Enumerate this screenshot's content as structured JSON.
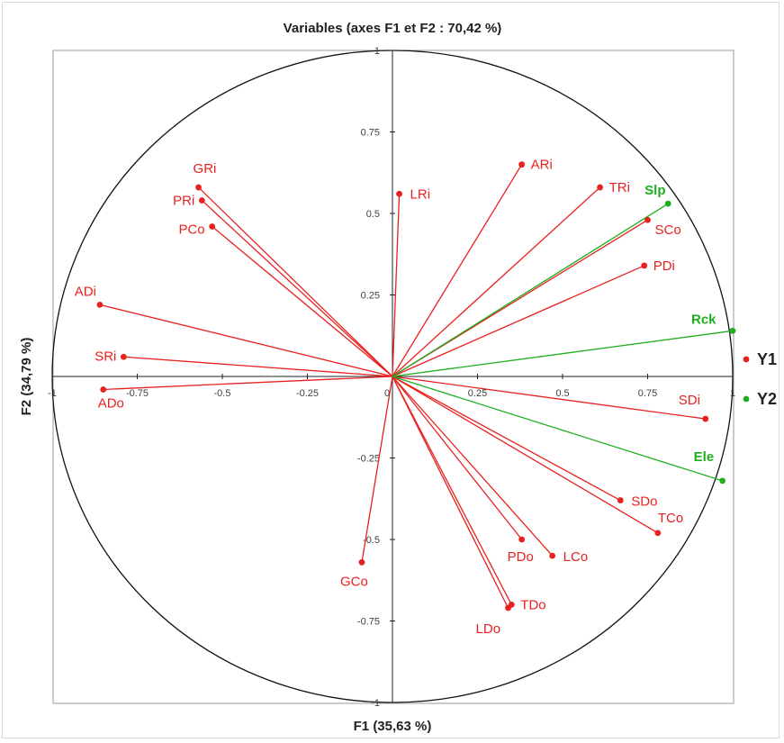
{
  "chart_data": {
    "type": "scatter",
    "subtype": "pca-correlation-circle",
    "title": "Variables (axes F1 et F2 : 70,42 %)",
    "xlabel": "F1 (35,63 %)",
    "ylabel": "F2 (34,79 %)",
    "xlim": [
      -1,
      1
    ],
    "ylim": [
      -1,
      1
    ],
    "x_ticks": [
      "-1",
      "-0.75",
      "-0.5",
      "-0.25",
      "0",
      "0.25",
      "0.5",
      "0.75",
      "1"
    ],
    "y_ticks": [
      "-1",
      "-0.75",
      "-0.5",
      "-0.25",
      "0",
      "0.25",
      "0.5",
      "0.75",
      "1"
    ],
    "legend_placement": "right",
    "series": [
      {
        "name": "Y1",
        "color": "#e8211f",
        "points": [
          {
            "label": "ARi",
            "x": 0.38,
            "y": 0.65
          },
          {
            "label": "TRi",
            "x": 0.61,
            "y": 0.58
          },
          {
            "label": "SCo",
            "x": 0.75,
            "y": 0.48
          },
          {
            "label": "PDi",
            "x": 0.74,
            "y": 0.34
          },
          {
            "label": "LRi",
            "x": 0.02,
            "y": 0.56
          },
          {
            "label": "GRi",
            "x": -0.57,
            "y": 0.58
          },
          {
            "label": "PRi",
            "x": -0.56,
            "y": 0.54
          },
          {
            "label": "PCo",
            "x": -0.53,
            "y": 0.46
          },
          {
            "label": "ADi",
            "x": -0.86,
            "y": 0.22
          },
          {
            "label": "SRi",
            "x": -0.79,
            "y": 0.06
          },
          {
            "label": "ADo",
            "x": -0.85,
            "y": -0.04
          },
          {
            "label": "SDi",
            "x": 0.92,
            "y": -0.13
          },
          {
            "label": "SDo",
            "x": 0.67,
            "y": -0.38
          },
          {
            "label": "TCo",
            "x": 0.78,
            "y": -0.48
          },
          {
            "label": "PDo",
            "x": 0.38,
            "y": -0.5
          },
          {
            "label": "LCo",
            "x": 0.47,
            "y": -0.55
          },
          {
            "label": "TDo",
            "x": 0.35,
            "y": -0.7
          },
          {
            "label": "LDo",
            "x": 0.34,
            "y": -0.71
          },
          {
            "label": "GCo",
            "x": -0.09,
            "y": -0.57
          }
        ]
      },
      {
        "name": "Y2",
        "color": "#1fae1f",
        "points": [
          {
            "label": "Slp",
            "x": 0.81,
            "y": 0.53
          },
          {
            "label": "Rck",
            "x": 1.0,
            "y": 0.14
          },
          {
            "label": "Ele",
            "x": 0.97,
            "y": -0.32
          }
        ]
      }
    ]
  }
}
